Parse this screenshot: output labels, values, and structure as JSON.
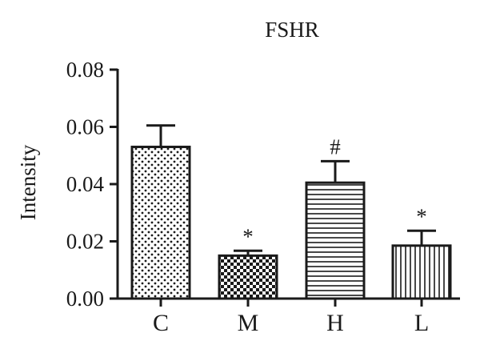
{
  "chart_data": {
    "type": "bar",
    "title": "FSHR",
    "xlabel": "",
    "ylabel": "Intensity",
    "ylim": [
      0,
      0.08
    ],
    "yticks": [
      "0.00",
      "0.02",
      "0.04",
      "0.06",
      "0.08"
    ],
    "categories": [
      "C",
      "M",
      "H",
      "L"
    ],
    "values": [
      0.053,
      0.015,
      0.0405,
      0.0185
    ],
    "errors": [
      0.0075,
      0.0017,
      0.0075,
      0.0052
    ],
    "annotations": [
      "",
      "*",
      "#",
      "*"
    ],
    "patterns": [
      "dots",
      "checker",
      "horizontal-lines",
      "vertical-lines"
    ],
    "grid": false,
    "legend": "none",
    "colors": {
      "ink": "#1a1a1a",
      "fill": "#ffffff"
    }
  }
}
